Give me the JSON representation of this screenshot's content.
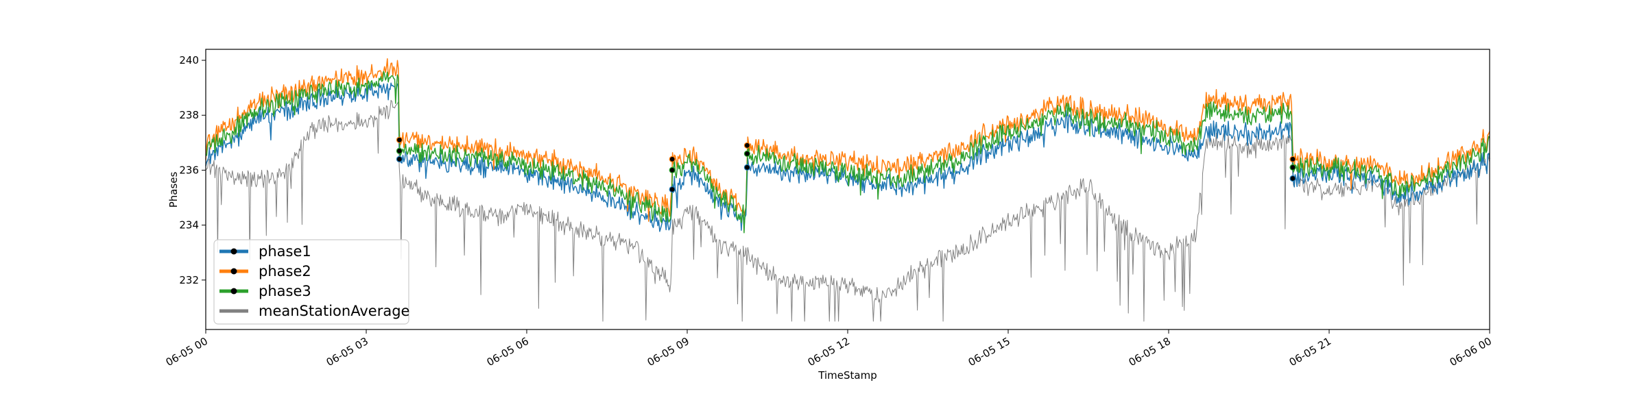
{
  "chart_data": {
    "type": "line",
    "title": "",
    "xlabel": "TimeStamp",
    "ylabel": "Phases",
    "xlim": [
      "2023-06-05 00:00",
      "2023-06-06 00:00"
    ],
    "ylim": [
      230.2,
      240.4
    ],
    "x_ticks": [
      "06-05 00",
      "06-05 03",
      "06-05 06",
      "06-05 09",
      "06-05 12",
      "06-05 15",
      "06-05 18",
      "06-05 21",
      "06-06 00"
    ],
    "y_ticks": [
      "232",
      "234",
      "236",
      "238",
      "240"
    ],
    "grid": false,
    "legend_position": "lower-left",
    "series": [
      {
        "name": "phase1",
        "color": "#1f77b4",
        "anchors": [
          [
            0,
            236.4
          ],
          [
            0.3,
            236.8
          ],
          [
            1,
            237.9
          ],
          [
            2,
            238.5
          ],
          [
            3,
            238.9
          ],
          [
            3.6,
            239.0
          ],
          [
            3.62,
            236.4
          ],
          [
            4.2,
            236.3
          ],
          [
            5,
            236.2
          ],
          [
            5.7,
            236.0
          ],
          [
            6.4,
            235.7
          ],
          [
            7.2,
            235.2
          ],
          [
            8,
            234.5
          ],
          [
            8.7,
            233.9
          ],
          [
            8.72,
            235.3
          ],
          [
            9.1,
            235.9
          ],
          [
            9.6,
            234.7
          ],
          [
            10.1,
            234.1
          ],
          [
            10.12,
            236.1
          ],
          [
            11,
            235.9
          ],
          [
            12,
            235.7
          ],
          [
            13,
            235.4
          ],
          [
            13.8,
            235.7
          ],
          [
            14.5,
            236.6
          ],
          [
            15.3,
            237.1
          ],
          [
            16,
            237.8
          ],
          [
            16.5,
            237.6
          ],
          [
            17.5,
            237.2
          ],
          [
            18.5,
            236.5
          ],
          [
            18.7,
            237.5
          ],
          [
            19.5,
            237.3
          ],
          [
            20.3,
            237.5
          ],
          [
            20.32,
            235.7
          ],
          [
            21,
            235.9
          ],
          [
            21.9,
            235.6
          ],
          [
            22.3,
            235.0
          ],
          [
            23,
            235.5
          ],
          [
            24,
            236.3
          ]
        ],
        "noise": 0.42
      },
      {
        "name": "phase2",
        "color": "#ff7f0e",
        "anchors": [
          [
            0,
            237.0
          ],
          [
            0.3,
            237.4
          ],
          [
            1,
            238.5
          ],
          [
            2,
            239.1
          ],
          [
            3,
            239.5
          ],
          [
            3.6,
            239.7
          ],
          [
            3.62,
            237.1
          ],
          [
            4.2,
            237.0
          ],
          [
            5,
            236.9
          ],
          [
            5.7,
            236.6
          ],
          [
            6.4,
            236.4
          ],
          [
            7.2,
            235.9
          ],
          [
            8,
            235.2
          ],
          [
            8.7,
            234.6
          ],
          [
            8.72,
            236.4
          ],
          [
            9.1,
            236.5
          ],
          [
            9.6,
            235.3
          ],
          [
            10.1,
            234.5
          ],
          [
            10.12,
            236.9
          ],
          [
            11,
            236.5
          ],
          [
            12,
            236.3
          ],
          [
            13,
            236.1
          ],
          [
            13.8,
            236.5
          ],
          [
            14.5,
            237.3
          ],
          [
            15.3,
            237.8
          ],
          [
            16,
            238.5
          ],
          [
            16.5,
            238.2
          ],
          [
            17.5,
            237.9
          ],
          [
            18.5,
            237.2
          ],
          [
            18.7,
            238.6
          ],
          [
            19.5,
            238.4
          ],
          [
            20.3,
            238.5
          ],
          [
            20.32,
            236.4
          ],
          [
            21,
            236.3
          ],
          [
            21.9,
            236.2
          ],
          [
            22.3,
            235.6
          ],
          [
            23,
            236.0
          ],
          [
            24,
            237.2
          ]
        ],
        "noise": 0.42
      },
      {
        "name": "phase3",
        "color": "#2ca02c",
        "anchors": [
          [
            0,
            236.8
          ],
          [
            0.3,
            237.1
          ],
          [
            1,
            238.2
          ],
          [
            2,
            238.8
          ],
          [
            3,
            239.2
          ],
          [
            3.6,
            239.4
          ],
          [
            3.62,
            236.7
          ],
          [
            4.2,
            236.6
          ],
          [
            5,
            236.5
          ],
          [
            5.7,
            236.3
          ],
          [
            6.4,
            236.0
          ],
          [
            7.2,
            235.6
          ],
          [
            8,
            234.9
          ],
          [
            8.7,
            234.2
          ],
          [
            8.72,
            236.0
          ],
          [
            9.1,
            236.3
          ],
          [
            9.6,
            235.0
          ],
          [
            10.1,
            234.3
          ],
          [
            10.12,
            236.6
          ],
          [
            11,
            236.2
          ],
          [
            12,
            235.9
          ],
          [
            13,
            235.7
          ],
          [
            13.8,
            236.1
          ],
          [
            14.5,
            237.0
          ],
          [
            15.3,
            237.5
          ],
          [
            16,
            238.2
          ],
          [
            16.5,
            237.9
          ],
          [
            17.5,
            237.6
          ],
          [
            18.5,
            236.8
          ],
          [
            18.7,
            238.2
          ],
          [
            19.5,
            238.0
          ],
          [
            20.3,
            238.1
          ],
          [
            20.32,
            236.1
          ],
          [
            21,
            236.1
          ],
          [
            21.9,
            235.9
          ],
          [
            22.3,
            235.3
          ],
          [
            23,
            235.8
          ],
          [
            24,
            236.9
          ]
        ],
        "noise": 0.42
      },
      {
        "name": "meanStationAverage",
        "color": "#808080",
        "anchors": [
          [
            0,
            236.2
          ],
          [
            0.5,
            235.8
          ],
          [
            1,
            235.6
          ],
          [
            1.5,
            235.9
          ],
          [
            2,
            237.5
          ],
          [
            3,
            237.8
          ],
          [
            3.6,
            238.4
          ],
          [
            3.62,
            235.6
          ],
          [
            4.2,
            235.0
          ],
          [
            5,
            234.5
          ],
          [
            5.5,
            234.3
          ],
          [
            6,
            234.6
          ],
          [
            6.5,
            234.2
          ],
          [
            7,
            233.8
          ],
          [
            7.5,
            233.5
          ],
          [
            8,
            233.2
          ],
          [
            8.7,
            231.8
          ],
          [
            8.72,
            233.8
          ],
          [
            9.1,
            234.6
          ],
          [
            9.6,
            233.3
          ],
          [
            10.1,
            232.9
          ],
          [
            10.5,
            232.2
          ],
          [
            11,
            231.9
          ],
          [
            12,
            231.8
          ],
          [
            12.7,
            231.4
          ],
          [
            13.2,
            232.2
          ],
          [
            14,
            233.0
          ],
          [
            15,
            234.1
          ],
          [
            16,
            235.0
          ],
          [
            16.5,
            235.5
          ],
          [
            17,
            234.2
          ],
          [
            17.5,
            233.5
          ],
          [
            18,
            233.0
          ],
          [
            18.5,
            233.6
          ],
          [
            18.7,
            237.1
          ],
          [
            19.5,
            236.8
          ],
          [
            20.3,
            237.0
          ],
          [
            20.32,
            235.6
          ],
          [
            21,
            235.2
          ],
          [
            21.9,
            235.5
          ],
          [
            22.3,
            234.7
          ],
          [
            23,
            235.4
          ],
          [
            24,
            236.3
          ]
        ],
        "noise": 0.38
      }
    ]
  }
}
